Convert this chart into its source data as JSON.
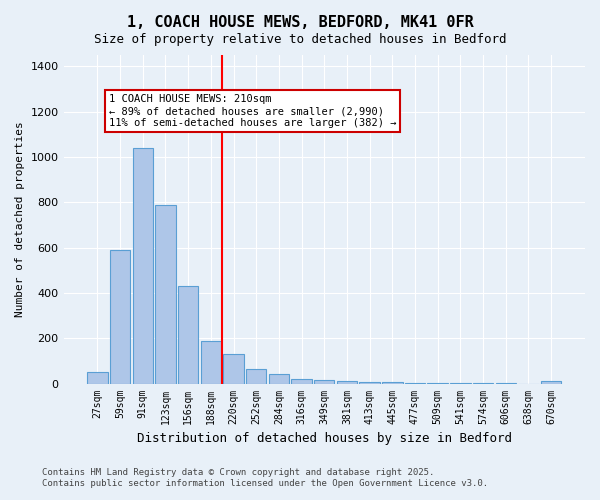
{
  "title": "1, COACH HOUSE MEWS, BEDFORD, MK41 0FR",
  "subtitle": "Size of property relative to detached houses in Bedford",
  "xlabel": "Distribution of detached houses by size in Bedford",
  "ylabel": "Number of detached properties",
  "categories": [
    "27sqm",
    "59sqm",
    "91sqm",
    "123sqm",
    "156sqm",
    "188sqm",
    "220sqm",
    "252sqm",
    "284sqm",
    "316sqm",
    "349sqm",
    "381sqm",
    "413sqm",
    "445sqm",
    "477sqm",
    "509sqm",
    "541sqm",
    "574sqm",
    "606sqm",
    "638sqm",
    "670sqm"
  ],
  "values": [
    50,
    590,
    1040,
    790,
    430,
    190,
    130,
    65,
    40,
    20,
    15,
    10,
    8,
    5,
    3,
    2,
    1,
    1,
    1,
    0,
    10
  ],
  "bar_color": "#aec6e8",
  "bar_edge_color": "#5a9fd4",
  "redline_x": 6,
  "redline_label": "220sqm",
  "annotation_lines": [
    "1 COACH HOUSE MEWS: 210sqm",
    "← 89% of detached houses are smaller (2,990)",
    "11% of semi-detached houses are larger (382) →"
  ],
  "annotation_box_color": "#ffffff",
  "annotation_box_edge": "#cc0000",
  "ylim": [
    0,
    1450
  ],
  "background_color": "#e8f0f8",
  "footer_line1": "Contains HM Land Registry data © Crown copyright and database right 2025.",
  "footer_line2": "Contains public sector information licensed under the Open Government Licence v3.0."
}
